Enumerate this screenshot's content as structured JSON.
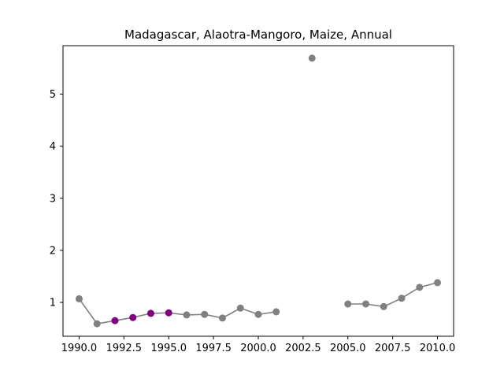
{
  "chart_data": {
    "type": "line",
    "title": "Madagascar, Alaotra-Mangoro, Maize, Annual",
    "xlabel": "",
    "ylabel": "",
    "xlim": [
      1989.1,
      2010.9
    ],
    "ylim": [
      0.35,
      5.93
    ],
    "x_ticks": [
      1990.0,
      1992.5,
      1995.0,
      1997.5,
      2000.0,
      2002.5,
      2005.0,
      2007.5,
      2010.0
    ],
    "x_tick_labels": [
      "1990.0",
      "1992.5",
      "1995.0",
      "1997.5",
      "2000.0",
      "2002.5",
      "2005.0",
      "2007.5",
      "2010.0"
    ],
    "y_ticks": [
      1,
      2,
      3,
      4,
      5
    ],
    "y_tick_labels": [
      "1",
      "2",
      "3",
      "4",
      "5"
    ],
    "grid": false,
    "line_color": "#808080",
    "point_color": "#808080",
    "highlight_color": "#800080",
    "segments": [
      [
        {
          "x": 1990,
          "y": 1.07,
          "highlight": false
        },
        {
          "x": 1991,
          "y": 0.59,
          "highlight": false
        },
        {
          "x": 1992,
          "y": 0.65,
          "highlight": true
        },
        {
          "x": 1993,
          "y": 0.71,
          "highlight": true
        },
        {
          "x": 1994,
          "y": 0.79,
          "highlight": true
        },
        {
          "x": 1995,
          "y": 0.8,
          "highlight": true
        },
        {
          "x": 1996,
          "y": 0.76,
          "highlight": false
        },
        {
          "x": 1997,
          "y": 0.77,
          "highlight": false
        },
        {
          "x": 1998,
          "y": 0.7,
          "highlight": false
        },
        {
          "x": 1999,
          "y": 0.89,
          "highlight": false
        },
        {
          "x": 2000,
          "y": 0.77,
          "highlight": false
        },
        {
          "x": 2001,
          "y": 0.82,
          "highlight": false
        }
      ],
      [
        {
          "x": 2003,
          "y": 5.69,
          "highlight": false
        }
      ],
      [
        {
          "x": 2005,
          "y": 0.97,
          "highlight": false
        },
        {
          "x": 2006,
          "y": 0.97,
          "highlight": false
        },
        {
          "x": 2007,
          "y": 0.92,
          "highlight": false
        },
        {
          "x": 2008,
          "y": 1.08,
          "highlight": false
        },
        {
          "x": 2009,
          "y": 1.29,
          "highlight": false
        },
        {
          "x": 2010,
          "y": 1.38,
          "highlight": false
        }
      ]
    ]
  }
}
